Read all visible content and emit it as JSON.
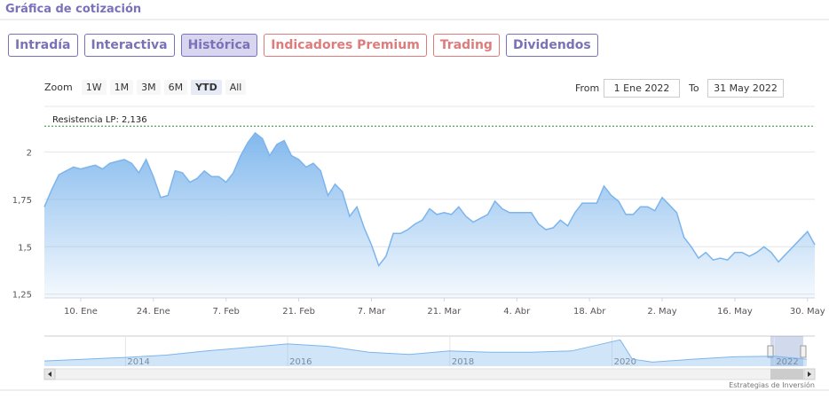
{
  "header": {
    "title": "Gráfica de cotización"
  },
  "tabs": [
    {
      "label": "Intradía",
      "color": "#7a72b8"
    },
    {
      "label": "Interactiva",
      "color": "#7a72b8"
    },
    {
      "label": "Histórica",
      "color": "#7a72b8"
    },
    {
      "label": "Indicadores Premium",
      "color": "#e07b7b"
    },
    {
      "label": "Trading",
      "color": "#e07b7b"
    },
    {
      "label": "Dividendos",
      "color": "#7a72b8"
    }
  ],
  "tabs_active": 2,
  "range_selector": {
    "zoom_label": "Zoom",
    "buttons": [
      "1W",
      "1M",
      "3M",
      "6M",
      "YTD",
      "All"
    ],
    "selected_index": 4,
    "from_label": "From",
    "from": "1 Ene 2022",
    "to_label": "To",
    "to": "31 May 2022"
  },
  "chart_data": [
    {
      "type": "line",
      "color": "#7cb5ec",
      "x": [
        "2022-01-03",
        "2022-01-04",
        "2022-01-05",
        "2022-01-06",
        "2022-01-07",
        "2022-01-10",
        "2022-01-11",
        "2022-01-12",
        "2022-01-13",
        "2022-01-14",
        "2022-01-17",
        "2022-01-18",
        "2022-01-19",
        "2022-01-20",
        "2022-01-21",
        "2022-01-24",
        "2022-01-25",
        "2022-01-26",
        "2022-01-27",
        "2022-01-28",
        "2022-01-31",
        "2022-02-01",
        "2022-02-02",
        "2022-02-03",
        "2022-02-04",
        "2022-02-07",
        "2022-02-08",
        "2022-02-09",
        "2022-02-10",
        "2022-02-11",
        "2022-02-14",
        "2022-02-15",
        "2022-02-16",
        "2022-02-17",
        "2022-02-18",
        "2022-02-21",
        "2022-02-22",
        "2022-02-23",
        "2022-02-24",
        "2022-02-25",
        "2022-02-28",
        "2022-03-01",
        "2022-03-02",
        "2022-03-03",
        "2022-03-04",
        "2022-03-07",
        "2022-03-08",
        "2022-03-09",
        "2022-03-10",
        "2022-03-11",
        "2022-03-14",
        "2022-03-15",
        "2022-03-16",
        "2022-03-17",
        "2022-03-18",
        "2022-03-21",
        "2022-03-22",
        "2022-03-23",
        "2022-03-24",
        "2022-03-25",
        "2022-03-28",
        "2022-03-29",
        "2022-03-30",
        "2022-03-31",
        "2022-04-01",
        "2022-04-04",
        "2022-04-05",
        "2022-04-06",
        "2022-04-07",
        "2022-04-08",
        "2022-04-11",
        "2022-04-12",
        "2022-04-13",
        "2022-04-14",
        "2022-04-15",
        "2022-04-18",
        "2022-04-19",
        "2022-04-20",
        "2022-04-21",
        "2022-04-22",
        "2022-04-25",
        "2022-04-26",
        "2022-04-27",
        "2022-04-28",
        "2022-04-29",
        "2022-05-02",
        "2022-05-03",
        "2022-05-04",
        "2022-05-05",
        "2022-05-06",
        "2022-05-09",
        "2022-05-10",
        "2022-05-11",
        "2022-05-12",
        "2022-05-13",
        "2022-05-16",
        "2022-05-17",
        "2022-05-18",
        "2022-05-19",
        "2022-05-20",
        "2022-05-23",
        "2022-05-24",
        "2022-05-25",
        "2022-05-26",
        "2022-05-27",
        "2022-05-30",
        "2022-05-31"
      ],
      "values": [
        1.71,
        1.8,
        1.88,
        1.9,
        1.92,
        1.91,
        1.92,
        1.93,
        1.91,
        1.94,
        1.95,
        1.96,
        1.94,
        1.89,
        1.96,
        1.87,
        1.76,
        1.77,
        1.9,
        1.89,
        1.84,
        1.86,
        1.9,
        1.87,
        1.87,
        1.84,
        1.89,
        1.98,
        2.05,
        2.1,
        2.07,
        1.98,
        2.04,
        2.06,
        1.98,
        1.96,
        1.92,
        1.94,
        1.9,
        1.77,
        1.83,
        1.79,
        1.66,
        1.71,
        1.6,
        1.51,
        1.4,
        1.45,
        1.57,
        1.57,
        1.59,
        1.62,
        1.64,
        1.7,
        1.67,
        1.68,
        1.67,
        1.71,
        1.66,
        1.63,
        1.65,
        1.67,
        1.74,
        1.7,
        1.68,
        1.68,
        1.68,
        1.68,
        1.62,
        1.59,
        1.6,
        1.64,
        1.61,
        1.68,
        1.73,
        1.73,
        1.73,
        1.82,
        1.77,
        1.74,
        1.67,
        1.67,
        1.71,
        1.71,
        1.69,
        1.76,
        1.72,
        1.68,
        1.55,
        1.5,
        1.44,
        1.47,
        1.43,
        1.44,
        1.43,
        1.47,
        1.47,
        1.45,
        1.47,
        1.5,
        1.47,
        1.42,
        1.46,
        1.5,
        1.54,
        1.58,
        1.51
      ],
      "ylim": [
        1.23,
        2.24
      ],
      "yticks": [
        {
          "value": 1.25,
          "label": "1,25"
        },
        {
          "value": 1.5,
          "label": "1,5"
        },
        {
          "value": 1.75,
          "label": "1,75"
        },
        2
      ],
      "xticks": [
        {
          "value": "2022-01-10",
          "label": "10. Ene"
        },
        {
          "value": "2022-01-24",
          "label": "24. Ene"
        },
        {
          "value": "2022-02-07",
          "label": "7. Feb"
        },
        {
          "value": "2022-02-21",
          "label": "21. Feb"
        },
        {
          "value": "2022-03-07",
          "label": "7. Mar"
        },
        {
          "value": "2022-03-21",
          "label": "21. Mar"
        },
        {
          "value": "2022-04-04",
          "label": "4. Abr"
        },
        {
          "value": "2022-04-18",
          "label": "18. Abr"
        },
        {
          "value": "2022-05-02",
          "label": "2. May"
        },
        {
          "value": "2022-05-16",
          "label": "16. May"
        },
        {
          "value": "2022-05-30",
          "label": "30. May"
        }
      ],
      "grid": true,
      "annotation": {
        "label": "Resistencia LP: 2,136",
        "value": 2.136,
        "color": "#2e8b2e"
      }
    },
    {
      "type": "area",
      "color": "#7cb5ec",
      "x": [
        2013,
        2013.5,
        2014,
        2014.5,
        2015,
        2015.5,
        2016,
        2016.5,
        2017,
        2017.5,
        2018,
        2018.5,
        2019,
        2019.5,
        2020,
        2020.1,
        2020.25,
        2020.5,
        2021,
        2021.5,
        2022,
        2022.4
      ],
      "values": [
        1.45,
        1.6,
        1.75,
        1.95,
        2.3,
        2.6,
        2.9,
        2.7,
        2.2,
        2.0,
        2.3,
        2.2,
        2.2,
        2.3,
        3.1,
        3.25,
        1.6,
        1.35,
        1.6,
        1.8,
        1.85,
        1.6
      ],
      "xlim": [
        2013,
        2022.5
      ],
      "ylim": [
        1,
        3.5
      ],
      "xticks": [
        2014,
        2016,
        2018,
        2020,
        2022
      ]
    }
  ],
  "credits": "Estrategias de Inversión"
}
